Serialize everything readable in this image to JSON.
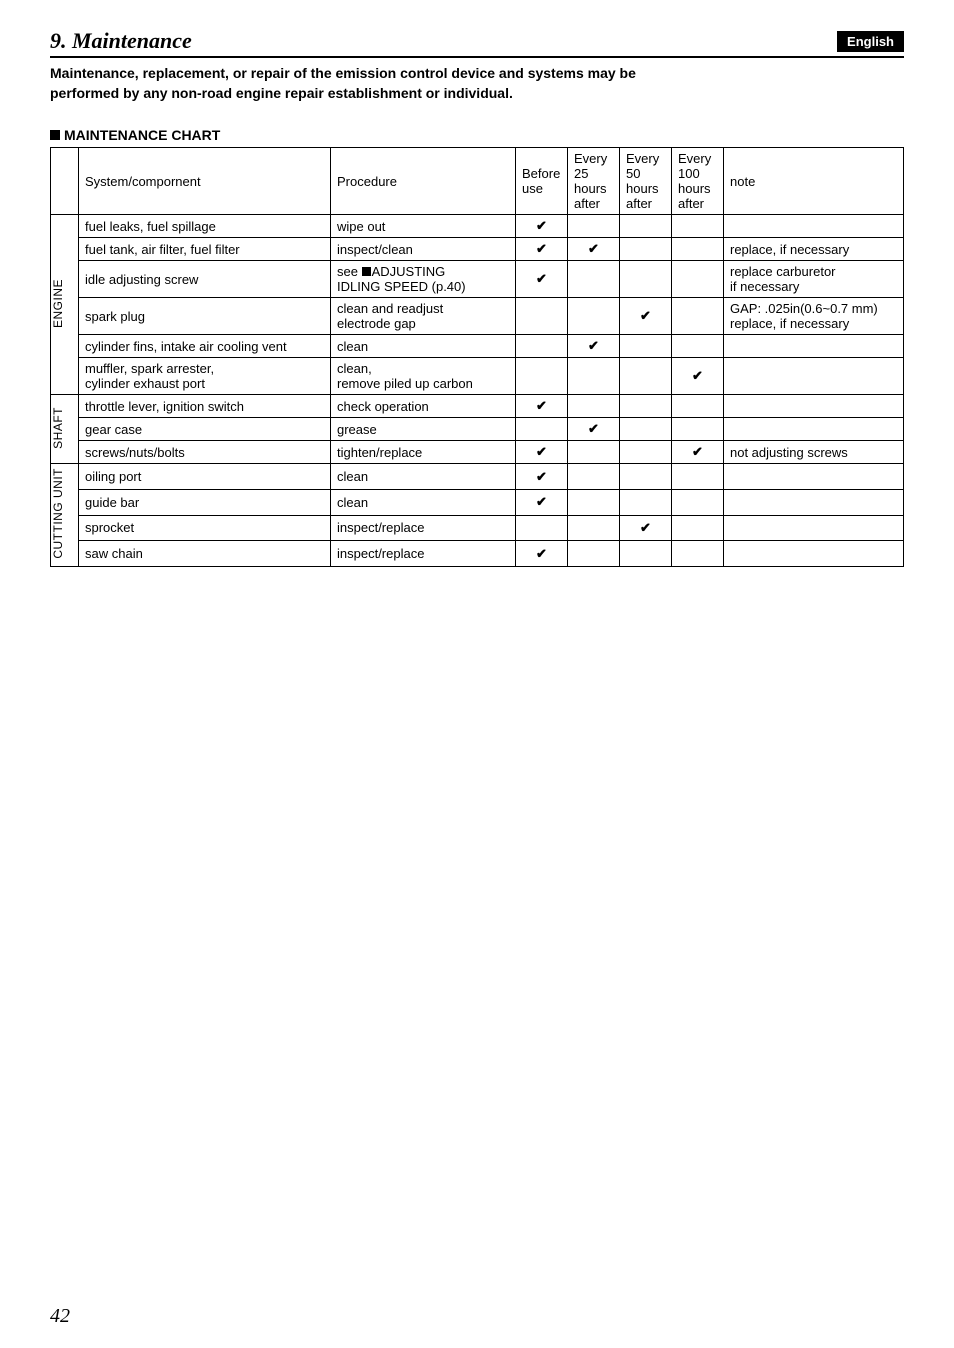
{
  "header": {
    "section_number_title": "9. Maintenance",
    "language_badge": "English"
  },
  "intro_text": "Maintenance, replacement, or repair of the emission control device and systems may be performed by any non-road engine repair establishment or individual.",
  "chart_heading": "MAINTENANCE CHART",
  "columns": {
    "system": "System/compornent",
    "procedure": "Procedure",
    "before": "Before use",
    "c25a": "Every 25",
    "c25b": "hours after",
    "c50a": "Every 50",
    "c50b": "hours after",
    "c100a": "Every 100",
    "c100b": "hours after",
    "note": "note"
  },
  "groups": {
    "engine": "ENGINE",
    "shaft": "SHAFT",
    "cutting": "CUTTING UNIT"
  },
  "rows": {
    "r1": {
      "system": "fuel leaks, fuel spillage",
      "procedure": "wipe out",
      "before": "✔",
      "h25": "",
      "h50": "",
      "h100": "",
      "note": ""
    },
    "r2": {
      "system": "fuel tank, air filter, fuel filter",
      "procedure": "inspect/clean",
      "before": "✔",
      "h25": "✔",
      "h50": "",
      "h100": "",
      "note": "replace, if necessary"
    },
    "r3": {
      "system": "idle adjusting screw",
      "procedure_line1": "see ",
      "procedure_line1b": "ADJUSTING",
      "procedure_line2": "IDLING SPEED (p.40)",
      "before": "✔",
      "h25": "",
      "h50": "",
      "h100": "",
      "note_line1": "replace carburetor",
      "note_line2": "if necessary"
    },
    "r4": {
      "system": "spark plug",
      "procedure_line1": "clean and readjust",
      "procedure_line2": "electrode gap",
      "before": "",
      "h25": "",
      "h50": "✔",
      "h100": "",
      "note_line1": "GAP: .025in(0.6~0.7 mm)",
      "note_line2": "replace, if necessary"
    },
    "r5": {
      "system": "cylinder fins, intake air cooling vent",
      "procedure": "clean",
      "before": "",
      "h25": "✔",
      "h50": "",
      "h100": "",
      "note": ""
    },
    "r6": {
      "system_line1": "muffler, spark arrester,",
      "system_line2": "cylinder exhaust port",
      "procedure_line1": "clean,",
      "procedure_line2": "remove piled up carbon",
      "before": "",
      "h25": "",
      "h50": "",
      "h100": "✔",
      "note": ""
    },
    "r7": {
      "system": "throttle lever, ignition switch",
      "procedure": "check operation",
      "before": "✔",
      "h25": "",
      "h50": "",
      "h100": "",
      "note": ""
    },
    "r8": {
      "system": "gear case",
      "procedure": "grease",
      "before": "",
      "h25": "✔",
      "h50": "",
      "h100": "",
      "note": ""
    },
    "r9": {
      "system": "screws/nuts/bolts",
      "procedure": "tighten/replace",
      "before": "✔",
      "h25": "",
      "h50": "",
      "h100": "✔",
      "note": "not adjusting screws"
    },
    "r10": {
      "system": "oiling port",
      "procedure": "clean",
      "before": "✔",
      "h25": "",
      "h50": "",
      "h100": "",
      "note": ""
    },
    "r11": {
      "system": "guide bar",
      "procedure": "clean",
      "before": "✔",
      "h25": "",
      "h50": "",
      "h100": "",
      "note": ""
    },
    "r12": {
      "system": "sprocket",
      "procedure": "inspect/replace",
      "before": "",
      "h25": "",
      "h50": "✔",
      "h100": "",
      "note": ""
    },
    "r13": {
      "system": "saw chain",
      "procedure": "inspect/replace",
      "before": "✔",
      "h25": "",
      "h50": "",
      "h100": "",
      "note": ""
    }
  },
  "page_number": "42"
}
